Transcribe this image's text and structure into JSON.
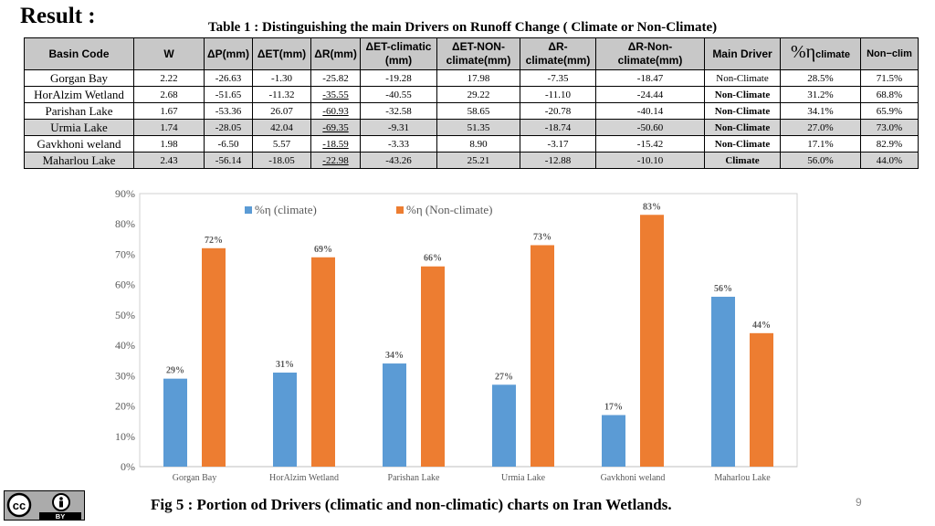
{
  "heading": "Result :",
  "table": {
    "caption": "Table 1 : Distinguishing the main Drivers on Runoff Change ( Climate or Non-Climate)",
    "headers": {
      "basin": "Basin Code",
      "w": "W",
      "dp": "ΔP(mm)",
      "det": "ΔET(mm)",
      "dr": "ΔR(mm)",
      "det_climatic": "ΔET-climatic (mm)",
      "det_nonclimate": "ΔET-NON-climate(mm)",
      "dr_climate": "ΔR-climate(mm)",
      "dr_nonclimate": "ΔR-Non-climate(mm)",
      "driver": "Main Driver",
      "eta_symbol": "%η",
      "eta_climate_sub": "climate",
      "eta_nonclim": "Non−clim"
    },
    "rows": [
      {
        "basin": "Gorgan Bay",
        "w": "2.22",
        "dp": "-26.63",
        "det": "-1.30",
        "dr": "-25.82",
        "det_c": "-19.28",
        "det_nc": "17.98",
        "dr_c": "-7.35",
        "dr_nc": "-18.47",
        "driver": "Non-Climate",
        "eta_c": "28.5%",
        "eta_nc": "71.5%"
      },
      {
        "basin": "HorAlzim Wetland",
        "w": "2.68",
        "dp": "-51.65",
        "det": "-11.32",
        "dr": "-35.55",
        "det_c": "-40.55",
        "det_nc": "29.22",
        "dr_c": "-11.10",
        "dr_nc": "-24.44",
        "driver": "Non-Climate",
        "eta_c": "31.2%",
        "eta_nc": "68.8%"
      },
      {
        "basin": "Parishan Lake",
        "w": "1.67",
        "dp": "-53.36",
        "det": "26.07",
        "dr": "-60.93",
        "det_c": "-32.58",
        "det_nc": "58.65",
        "dr_c": "-20.78",
        "dr_nc": "-40.14",
        "driver": "Non-Climate",
        "eta_c": "34.1%",
        "eta_nc": "65.9%"
      },
      {
        "basin": "Urmia Lake",
        "w": "1.74",
        "dp": "-28.05",
        "det": "42.04",
        "dr": "-69.35",
        "det_c": "-9.31",
        "det_nc": "51.35",
        "dr_c": "-18.74",
        "dr_nc": "-50.60",
        "driver": "Non-Climate",
        "eta_c": "27.0%",
        "eta_nc": "73.0%"
      },
      {
        "basin": "Gavkhoni weland",
        "w": "1.98",
        "dp": "-6.50",
        "det": "5.57",
        "dr": "-18.59",
        "det_c": "-3.33",
        "det_nc": "8.90",
        "dr_c": "-3.17",
        "dr_nc": "-15.42",
        "driver": "Non-Climate",
        "eta_c": "17.1%",
        "eta_nc": "82.9%"
      },
      {
        "basin": "Maharlou Lake",
        "w": "2.43",
        "dp": "-56.14",
        "det": "-18.05",
        "dr": "-22.98",
        "det_c": "-43.26",
        "det_nc": "25.21",
        "dr_c": "-12.88",
        "dr_nc": "-10.10",
        "driver": "Climate",
        "eta_c": "56.0%",
        "eta_nc": "44.0%"
      }
    ]
  },
  "chart_data": {
    "type": "bar",
    "categories": [
      "Gorgan Bay",
      "HorAlzim Wetland",
      "Parishan Lake",
      "Urmia Lake",
      "Gavkhoni weland",
      "Maharlou Lake"
    ],
    "series": [
      {
        "name": "%η (climate)",
        "values": [
          29,
          31,
          34,
          27,
          17,
          56
        ],
        "labels": [
          "29%",
          "31%",
          "34%",
          "27%",
          "17%",
          "56%"
        ],
        "color": "#5b9bd5"
      },
      {
        "name": "%η (Non-climate)",
        "values": [
          72,
          69,
          66,
          73,
          83,
          44
        ],
        "labels": [
          "72%",
          "69%",
          "66%",
          "73%",
          "83%",
          "44%"
        ],
        "color": "#ed7d31"
      }
    ],
    "y_ticks": [
      "0%",
      "10%",
      "20%",
      "30%",
      "40%",
      "50%",
      "60%",
      "70%",
      "80%",
      "90%"
    ],
    "ylim": [
      0,
      90
    ],
    "grid": false,
    "legend": "top"
  },
  "figure_caption": "Fig 5 : Portion od Drivers (climatic and non-climatic) charts on Iran Wetlands.",
  "page_number": "9",
  "license": {
    "icon": "cc-by-icon",
    "label": "BY"
  }
}
